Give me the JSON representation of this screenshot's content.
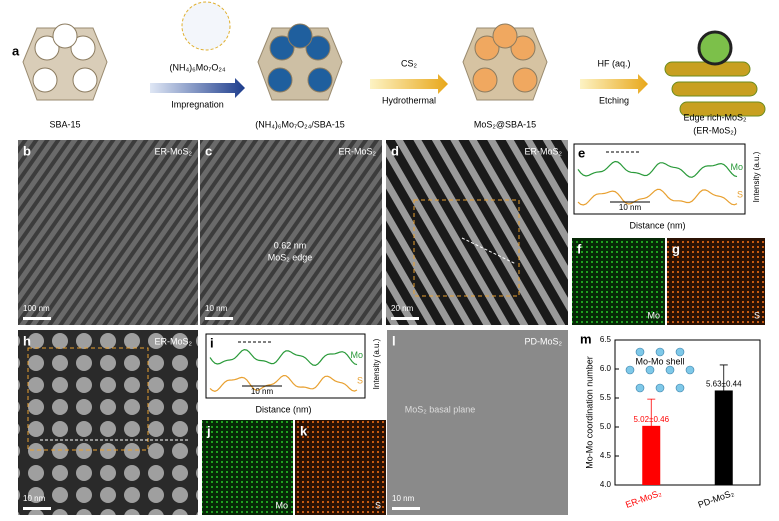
{
  "panel_a": {
    "label": "a",
    "materials": [
      "SBA-15",
      "(NH₄)₆Mo₇O₂₄/SBA-15",
      "MoS₂@SBA-15",
      "Edge rich-MoS₂",
      "(ER-MoS₂)"
    ],
    "steps": [
      {
        "reagent": "(NH₄)₆Mo₇O₂₄",
        "process": "Impregnation"
      },
      {
        "reagent": "CS₂",
        "process": "Hydrothermal"
      },
      {
        "reagent": "HF (aq.)",
        "process": "Etching"
      }
    ]
  },
  "images": [
    {
      "label": "b",
      "tag": "ER-MoS₂",
      "scale_bar": "100 nm"
    },
    {
      "label": "c",
      "tag": "ER-MoS₂",
      "scale_bar": "10 nm",
      "annotations": [
        "0.62 nm",
        "MoS₂ edge"
      ]
    },
    {
      "label": "d",
      "tag": "ER-MoS₂",
      "scale_bar": "20 nm"
    },
    {
      "label": "h",
      "tag": "ER-MoS₂",
      "scale_bar": "10 nm"
    },
    {
      "label": "l",
      "tag": "PD-MoS₂",
      "scale_bar": "10 nm",
      "annotations": [
        "MoS₂ basal plane"
      ]
    }
  ],
  "profiles": [
    {
      "label": "e",
      "series": [
        "Mo",
        "S"
      ],
      "scale_bar": "10 nm",
      "xlabel": "Distance (nm)",
      "ylabel": "Intensity (a.u.)"
    },
    {
      "label": "i",
      "series": [
        "Mo",
        "S"
      ],
      "scale_bar": "10 nm",
      "xlabel": "Distance (nm)",
      "ylabel": "Intensity (a.u.)"
    }
  ],
  "maps": [
    {
      "label": "f",
      "element": "Mo"
    },
    {
      "label": "g",
      "element": "S"
    },
    {
      "label": "j",
      "element": "Mo"
    },
    {
      "label": "k",
      "element": "S"
    }
  ],
  "chart_data": {
    "type": "bar",
    "label": "m",
    "ylabel": "Mo-Mo coordination number",
    "inset_label": "Mo-Mo shell",
    "categories": [
      "ER-MoS₂",
      "PD-MoS₂"
    ],
    "values": [
      5.02,
      5.63
    ],
    "errors": [
      0.46,
      0.44
    ],
    "value_labels": [
      "5.02±0.46",
      "5.63±0.44"
    ],
    "colors": [
      "#ff0000",
      "#000000"
    ],
    "ylim": [
      4.0,
      6.5
    ],
    "yticks": [
      {
        "value": 4.0,
        "label": "4.0"
      },
      {
        "value": 4.5,
        "label": "4.5"
      },
      {
        "value": 5.0,
        "label": "5.0"
      },
      {
        "value": 5.5,
        "label": "5.5"
      },
      {
        "value": 6.0,
        "label": "6.0"
      },
      {
        "value": 6.5,
        "label": "6.5"
      }
    ]
  }
}
